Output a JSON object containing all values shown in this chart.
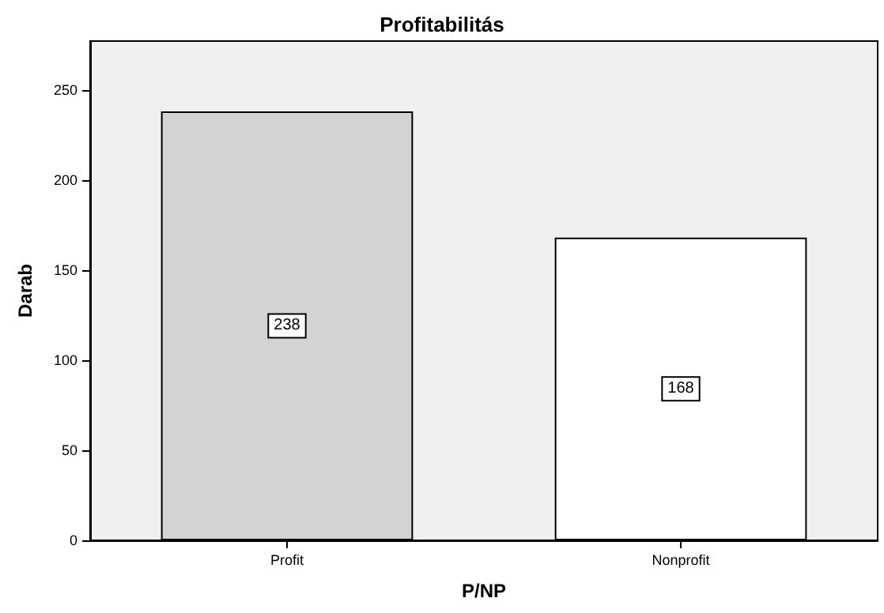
{
  "chart_data": {
    "type": "bar",
    "title": "Profitabilitás",
    "xlabel": "P/NP",
    "ylabel": "Darab",
    "categories": [
      "Profit",
      "Nonprofit"
    ],
    "values": [
      238,
      168
    ],
    "colors": [
      "#d3d3d3",
      "#ffffff"
    ],
    "ylim": [
      0,
      277
    ],
    "yticks": [
      0,
      50,
      100,
      150,
      200,
      250
    ],
    "data_labels": true
  }
}
